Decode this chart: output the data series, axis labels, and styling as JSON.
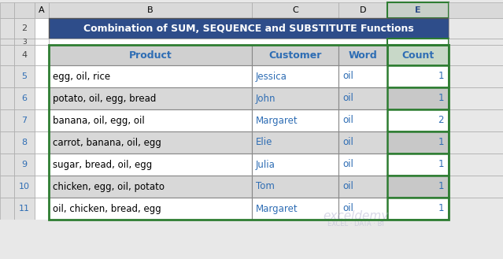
{
  "title": "Combination of SUM, SEQUENCE and SUBSTITUTE Functions",
  "title_bg": "#2E4D8A",
  "title_fg": "#FFFFFF",
  "headers": [
    "Product",
    "Customer",
    "Word",
    "Count"
  ],
  "header_bg": "#D0D0D0",
  "header_fg": "#2E6DB4",
  "rows": [
    [
      "egg, oil, rice",
      "Jessica",
      "oil",
      "1"
    ],
    [
      "potato, oil, egg, bread",
      "John",
      "oil",
      "1"
    ],
    [
      "banana, oil, egg, oil",
      "Margaret",
      "oil",
      "2"
    ],
    [
      "carrot, banana, oil, egg",
      "Elie",
      "oil",
      "1"
    ],
    [
      "sugar, bread, oil, egg",
      "Julia",
      "oil",
      "1"
    ],
    [
      "chicken, egg, oil, potato",
      "Tom",
      "oil",
      "1"
    ],
    [
      "oil, chicken, bread, egg",
      "Margaret",
      "oil",
      "1"
    ]
  ],
  "row_num_color": "#2E6DB4",
  "row_bg_odd": "#FFFFFF",
  "row_bg_even": "#D8D8D8",
  "count_col_bg_odd": "#FFFFFF",
  "count_col_bg_even": "#C8C8C8",
  "col_header_bg": "#D9D9D9",
  "row_header_bg": "#E0E0E0",
  "count_header_bg": "#C8D8C8",
  "count_border_color": "#2E7D32",
  "grid_color": "#888888",
  "watermark1": "exceldemy",
  "watermark2": "EXCEL · DATA · BI",
  "fig_bg": "#E8E8E8"
}
